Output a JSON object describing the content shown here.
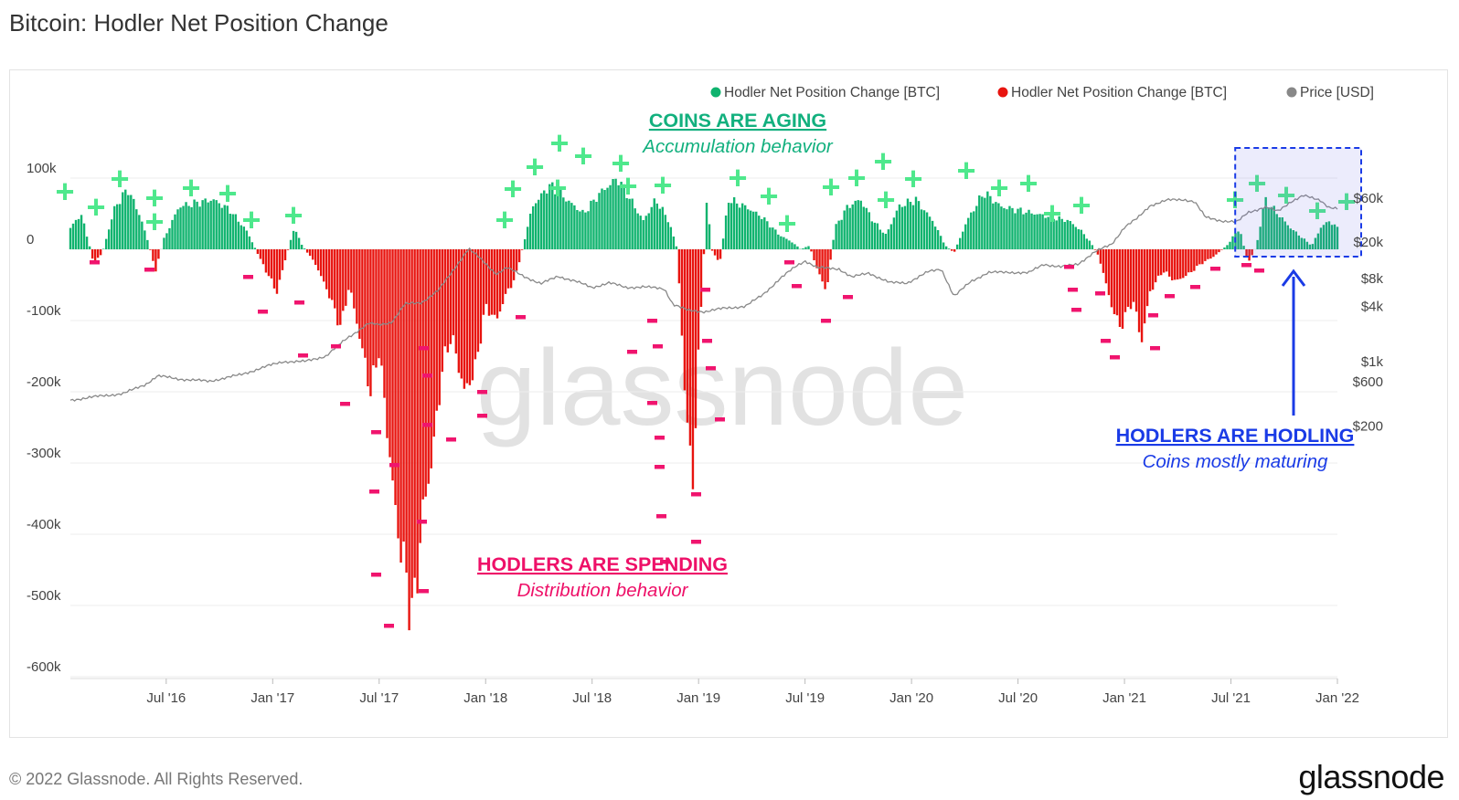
{
  "title": "Bitcoin: Hodler Net Position Change",
  "footer": {
    "copyright": "© 2022 Glassnode. All Rights Reserved.",
    "logo": "glassnode"
  },
  "watermark": "glassnode",
  "colors": {
    "positive": "#0fb36e",
    "negative": "#e8140f",
    "price": "#888888",
    "plus": "#4ee88c",
    "minus": "#f0146e",
    "hodl": "#1a3be6",
    "aging": "#12b07e",
    "spending": "#ee1068"
  },
  "chart_data": {
    "type": "bar",
    "legend": {
      "placement": "top-right",
      "items": [
        {
          "label": "Hodler Net Position Change [BTC]",
          "color": "#0fb36e"
        },
        {
          "label": "Hodler Net Position Change [BTC]",
          "color": "#e8140f"
        },
        {
          "label": "Price [USD]",
          "color": "#888888"
        }
      ]
    },
    "x_ticks": [
      "Jul '16",
      "Jan '17",
      "Jul '17",
      "Jan '18",
      "Jul '18",
      "Jan '19",
      "Jul '19",
      "Jan '20",
      "Jul '20",
      "Jan '21",
      "Jul '21",
      "Jan '22"
    ],
    "x_tick_years": [
      2016.5,
      2017.0,
      2017.5,
      2018.0,
      2018.5,
      2019.0,
      2019.5,
      2020.0,
      2020.5,
      2021.0,
      2021.5,
      2022.0
    ],
    "x_range": [
      2016.05,
      2022.0
    ],
    "left_axis": {
      "ticks": [
        "100k",
        "0",
        "-100k",
        "-200k",
        "-300k",
        "-400k",
        "-500k",
        "-600k"
      ],
      "values": [
        100000,
        0,
        -100000,
        -200000,
        -300000,
        -400000,
        -500000,
        -600000
      ],
      "range": [
        -600000,
        140000
      ]
    },
    "right_axis": {
      "ticks": [
        "$60k",
        "$20k",
        "$8k",
        "$4k",
        "$1k",
        "$600",
        "$200"
      ],
      "values": [
        60000,
        20000,
        8000,
        4000,
        1000,
        600,
        200
      ],
      "scale": "log"
    },
    "net_position_change": [
      [
        2016.05,
        30000
      ],
      [
        2016.1,
        50000
      ],
      [
        2016.14,
        5000
      ],
      [
        2016.16,
        -20000
      ],
      [
        2016.2,
        -5000
      ],
      [
        2016.26,
        60000
      ],
      [
        2016.32,
        85000
      ],
      [
        2016.38,
        45000
      ],
      [
        2016.42,
        5000
      ],
      [
        2016.45,
        -30000
      ],
      [
        2016.49,
        15000
      ],
      [
        2016.56,
        60000
      ],
      [
        2016.64,
        65000
      ],
      [
        2016.72,
        70000
      ],
      [
        2016.8,
        55000
      ],
      [
        2016.88,
        25000
      ],
      [
        2016.92,
        0
      ],
      [
        2016.96,
        -25000
      ],
      [
        2017.02,
        -60000
      ],
      [
        2017.05,
        -25000
      ],
      [
        2017.1,
        30000
      ],
      [
        2017.14,
        5000
      ],
      [
        2017.2,
        -20000
      ],
      [
        2017.26,
        -60000
      ],
      [
        2017.32,
        -110000
      ],
      [
        2017.36,
        -50000
      ],
      [
        2017.4,
        -110000
      ],
      [
        2017.46,
        -200000
      ],
      [
        2017.5,
        -140000
      ],
      [
        2017.54,
        -260000
      ],
      [
        2017.58,
        -380000
      ],
      [
        2017.62,
        -450000
      ],
      [
        2017.66,
        -520000
      ],
      [
        2017.7,
        -380000
      ],
      [
        2017.75,
        -290000
      ],
      [
        2017.8,
        -160000
      ],
      [
        2017.84,
        -120000
      ],
      [
        2017.9,
        -200000
      ],
      [
        2017.95,
        -170000
      ],
      [
        2018.0,
        -80000
      ],
      [
        2018.05,
        -100000
      ],
      [
        2018.1,
        -60000
      ],
      [
        2018.14,
        -40000
      ],
      [
        2018.18,
        10000
      ],
      [
        2018.22,
        60000
      ],
      [
        2018.3,
        90000
      ],
      [
        2018.38,
        70000
      ],
      [
        2018.46,
        50000
      ],
      [
        2018.54,
        80000
      ],
      [
        2018.62,
        100000
      ],
      [
        2018.68,
        70000
      ],
      [
        2018.74,
        40000
      ],
      [
        2018.8,
        70000
      ],
      [
        2018.86,
        40000
      ],
      [
        2018.9,
        0
      ],
      [
        2018.93,
        -170000
      ],
      [
        2018.97,
        -340000
      ],
      [
        2019.0,
        -150000
      ],
      [
        2019.04,
        80000
      ],
      [
        2019.06,
        0
      ],
      [
        2019.1,
        -20000
      ],
      [
        2019.14,
        70000
      ],
      [
        2019.22,
        60000
      ],
      [
        2019.3,
        45000
      ],
      [
        2019.38,
        20000
      ],
      [
        2019.44,
        10000
      ],
      [
        2019.48,
        0
      ],
      [
        2019.52,
        5000
      ],
      [
        2019.56,
        -30000
      ],
      [
        2019.6,
        -60000
      ],
      [
        2019.64,
        30000
      ],
      [
        2019.7,
        60000
      ],
      [
        2019.76,
        70000
      ],
      [
        2019.82,
        40000
      ],
      [
        2019.88,
        20000
      ],
      [
        2019.94,
        60000
      ],
      [
        2020.02,
        70000
      ],
      [
        2020.1,
        40000
      ],
      [
        2020.16,
        5000
      ],
      [
        2020.2,
        -5000
      ],
      [
        2020.26,
        40000
      ],
      [
        2020.34,
        80000
      ],
      [
        2020.42,
        60000
      ],
      [
        2020.5,
        55000
      ],
      [
        2020.58,
        50000
      ],
      [
        2020.66,
        45000
      ],
      [
        2020.74,
        40000
      ],
      [
        2020.8,
        25000
      ],
      [
        2020.84,
        10000
      ],
      [
        2020.88,
        -10000
      ],
      [
        2020.94,
        -80000
      ],
      [
        2020.98,
        -110000
      ],
      [
        2021.04,
        -70000
      ],
      [
        2021.08,
        -130000
      ],
      [
        2021.12,
        -60000
      ],
      [
        2021.18,
        -30000
      ],
      [
        2021.24,
        -45000
      ],
      [
        2021.3,
        -35000
      ],
      [
        2021.36,
        -20000
      ],
      [
        2021.42,
        -10000
      ],
      [
        2021.48,
        5000
      ],
      [
        2021.54,
        30000
      ],
      [
        2021.58,
        -20000
      ],
      [
        2021.62,
        5000
      ],
      [
        2021.66,
        70000
      ],
      [
        2021.72,
        50000
      ],
      [
        2021.78,
        30000
      ],
      [
        2021.84,
        15000
      ],
      [
        2021.88,
        5000
      ],
      [
        2021.92,
        30000
      ],
      [
        2021.96,
        40000
      ],
      [
        2022.0,
        30000
      ]
    ],
    "price_usd": [
      [
        2016.05,
        380
      ],
      [
        2016.15,
        410
      ],
      [
        2016.3,
        450
      ],
      [
        2016.4,
        560
      ],
      [
        2016.46,
        700
      ],
      [
        2016.55,
        650
      ],
      [
        2016.7,
        610
      ],
      [
        2016.85,
        720
      ],
      [
        2016.98,
        900
      ],
      [
        2017.05,
        1000
      ],
      [
        2017.15,
        1000
      ],
      [
        2017.25,
        1150
      ],
      [
        2017.35,
        1800
      ],
      [
        2017.45,
        2600
      ],
      [
        2017.5,
        2500
      ],
      [
        2017.56,
        2700
      ],
      [
        2017.62,
        4200
      ],
      [
        2017.7,
        4400
      ],
      [
        2017.78,
        6000
      ],
      [
        2017.85,
        10000
      ],
      [
        2017.92,
        17000
      ],
      [
        2017.97,
        13500
      ],
      [
        2018.05,
        9000
      ],
      [
        2018.1,
        10500
      ],
      [
        2018.18,
        8500
      ],
      [
        2018.26,
        7000
      ],
      [
        2018.34,
        8500
      ],
      [
        2018.42,
        7500
      ],
      [
        2018.5,
        6400
      ],
      [
        2018.58,
        7200
      ],
      [
        2018.66,
        6400
      ],
      [
        2018.74,
        6500
      ],
      [
        2018.84,
        6200
      ],
      [
        2018.88,
        4200
      ],
      [
        2018.95,
        3600
      ],
      [
        2019.03,
        3500
      ],
      [
        2019.12,
        3800
      ],
      [
        2019.22,
        4000
      ],
      [
        2019.3,
        5300
      ],
      [
        2019.38,
        7900
      ],
      [
        2019.46,
        11000
      ],
      [
        2019.5,
        12500
      ],
      [
        2019.56,
        10500
      ],
      [
        2019.66,
        10200
      ],
      [
        2019.72,
        8300
      ],
      [
        2019.8,
        9200
      ],
      [
        2019.9,
        7200
      ],
      [
        2019.98,
        7200
      ],
      [
        2020.08,
        9500
      ],
      [
        2020.14,
        10200
      ],
      [
        2020.2,
        5100
      ],
      [
        2020.28,
        7500
      ],
      [
        2020.36,
        9300
      ],
      [
        2020.46,
        9400
      ],
      [
        2020.55,
        9200
      ],
      [
        2020.62,
        11500
      ],
      [
        2020.7,
        10700
      ],
      [
        2020.78,
        11500
      ],
      [
        2020.86,
        15500
      ],
      [
        2020.94,
        19000
      ],
      [
        2021.0,
        29000
      ],
      [
        2021.06,
        36000
      ],
      [
        2021.12,
        50000
      ],
      [
        2021.2,
        57000
      ],
      [
        2021.28,
        58000
      ],
      [
        2021.33,
        55000
      ],
      [
        2021.38,
        37000
      ],
      [
        2021.46,
        34000
      ],
      [
        2021.53,
        33000
      ],
      [
        2021.58,
        42000
      ],
      [
        2021.66,
        48000
      ],
      [
        2021.72,
        43000
      ],
      [
        2021.78,
        55000
      ],
      [
        2021.84,
        64000
      ],
      [
        2021.88,
        60000
      ],
      [
        2021.92,
        57000
      ],
      [
        2021.96,
        48000
      ],
      [
        2022.0,
        46000
      ]
    ],
    "annotations": [
      {
        "title": "COINS ARE AGING",
        "subtitle": "Accumulation behavior",
        "color": "#12b07e"
      },
      {
        "title": "HODLERS ARE SPENDING",
        "subtitle": "Distribution behavior",
        "color": "#ee1068"
      },
      {
        "title": "HODLERS ARE HODLING",
        "subtitle": "Coins mostly maturing",
        "color": "#1a3be6"
      }
    ],
    "highlight_range": [
      2021.52,
      2022.0
    ]
  }
}
